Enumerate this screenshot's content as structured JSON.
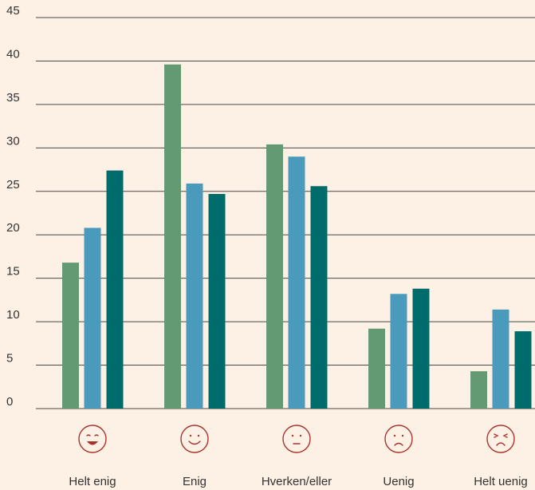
{
  "chart_data": {
    "type": "bar",
    "categories": [
      "Helt enig",
      "Enig",
      "Hverken/eller",
      "Uenig",
      "Helt uenig"
    ],
    "series": [
      {
        "color": "#639a74",
        "values": [
          16.8,
          39.6,
          30.4,
          9.2,
          4.3
        ]
      },
      {
        "color": "#4a9bbb",
        "values": [
          20.8,
          25.9,
          29.0,
          13.2,
          11.4
        ]
      },
      {
        "color": "#006b6b",
        "values": [
          27.4,
          24.7,
          25.6,
          13.8,
          8.9
        ]
      }
    ],
    "ylim": [
      0,
      45
    ],
    "yticks": [
      0,
      5,
      10,
      15,
      20,
      25,
      30,
      35,
      40,
      45
    ],
    "grid": true
  }
}
